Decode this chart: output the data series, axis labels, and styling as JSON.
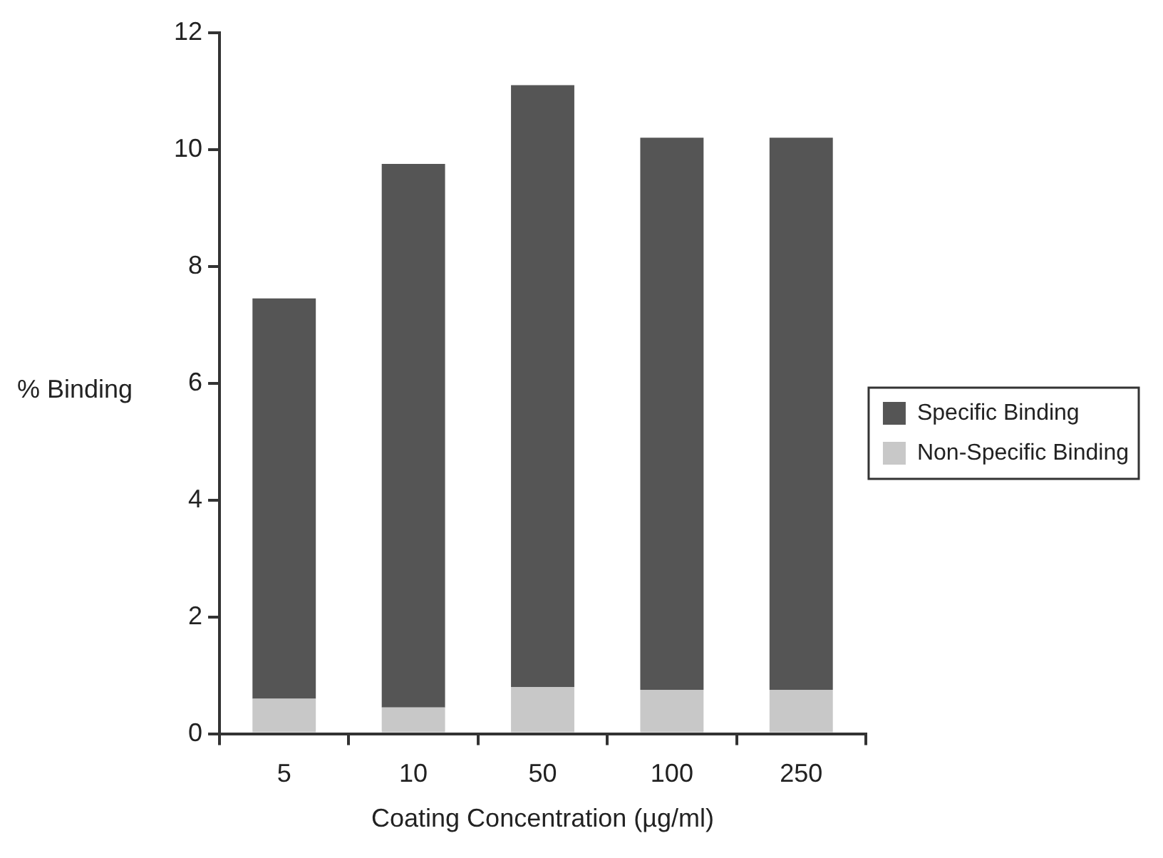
{
  "chart_data": {
    "type": "bar",
    "stacked": true,
    "ylabel": "% Binding",
    "xlabel": "Coating Concentration (µg/ml)",
    "categories": [
      "5",
      "10",
      "50",
      "100",
      "250"
    ],
    "series": [
      {
        "name": "Non-Specific Binding",
        "color": "#c8c8c8",
        "values": [
          0.6,
          0.45,
          0.8,
          0.75,
          0.75
        ]
      },
      {
        "name": "Specific Binding",
        "color": "#555555",
        "values": [
          6.85,
          9.3,
          10.3,
          9.45,
          9.45
        ]
      }
    ],
    "ylim": [
      0,
      12
    ],
    "yticks": [
      0,
      2,
      4,
      6,
      8,
      10,
      12
    ],
    "grid": false,
    "legend": "right"
  }
}
